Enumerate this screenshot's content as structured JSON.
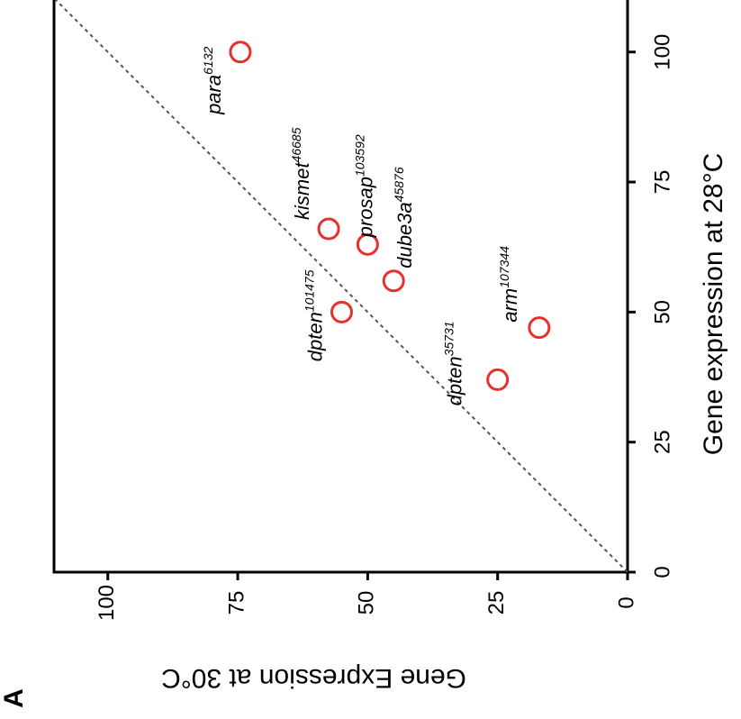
{
  "panel_label": "A",
  "chart_data": {
    "type": "scatter",
    "xlabel": "Gene expression at 28°C",
    "ylabel": "Gene Expression at 30°C",
    "xlim": [
      0,
      110
    ],
    "ylim": [
      0,
      110
    ],
    "xticks": [
      0,
      25,
      50,
      75,
      100
    ],
    "yticks": [
      0,
      25,
      50,
      75,
      100
    ],
    "grid": false,
    "reference_line": "y = x",
    "marker_color": "#e8302c",
    "points": [
      {
        "gene": "para",
        "allele": "6132",
        "x": 100,
        "y": 74.5
      },
      {
        "gene": "kismet",
        "allele": "46685",
        "x": 66,
        "y": 57.5
      },
      {
        "gene": "prosap",
        "allele": "103592",
        "x": 63,
        "y": 50
      },
      {
        "gene": "dube3a",
        "allele": "45876",
        "x": 56,
        "y": 45
      },
      {
        "gene": "dpten",
        "allele": "101475",
        "x": 50,
        "y": 55
      },
      {
        "gene": "arm",
        "allele": "107344",
        "x": 47,
        "y": 17
      },
      {
        "gene": "dpten",
        "allele": "35731",
        "x": 37,
        "y": 25
      }
    ]
  }
}
